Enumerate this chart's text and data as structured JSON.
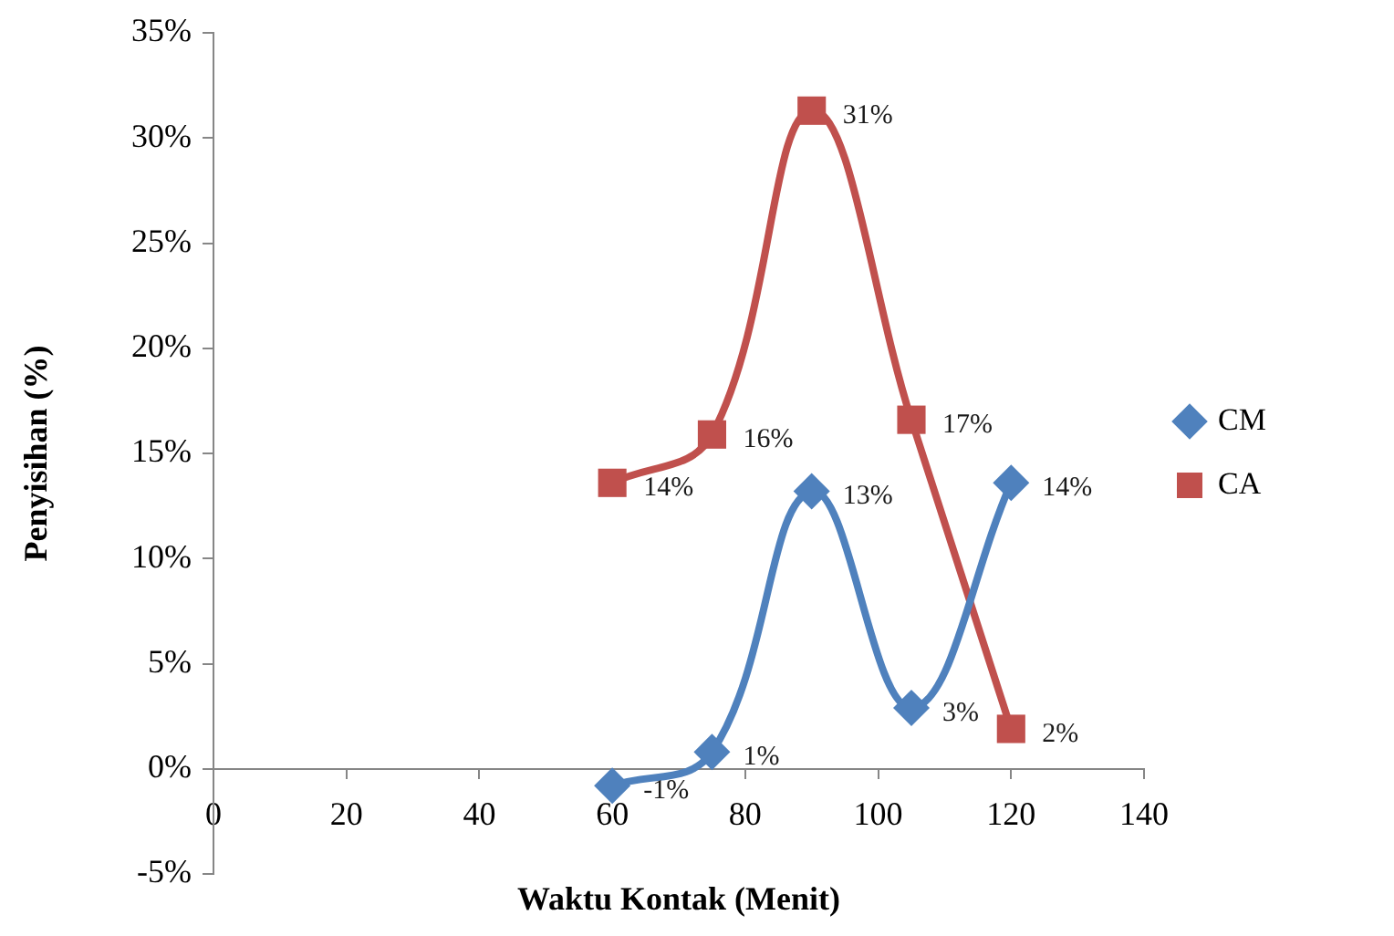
{
  "chart_data": {
    "type": "line",
    "xlabel": "Waktu Kontak (Menit)",
    "ylabel": "Penyisihan (%)",
    "x": [
      60,
      75,
      90,
      105,
      120
    ],
    "series": [
      {
        "name": "CM",
        "color": "#4f81bd",
        "marker": "diamond",
        "values": [
          -0.8,
          0.8,
          13.2,
          2.9,
          13.6
        ],
        "value_labels": [
          "-1%",
          "1%",
          "13%",
          "3%",
          "14%"
        ]
      },
      {
        "name": "CA",
        "color": "#c0504d",
        "marker": "square",
        "values": [
          13.6,
          15.9,
          31.3,
          16.6,
          1.9
        ],
        "value_labels": [
          "14%",
          "16%",
          "31%",
          "17%",
          "2%"
        ]
      }
    ],
    "xlim": [
      0,
      140
    ],
    "xticks": [
      0,
      20,
      40,
      60,
      80,
      100,
      120,
      140
    ],
    "ylim": [
      -5,
      35
    ],
    "yticks": [
      {
        "value": -5,
        "label": "-5%"
      },
      {
        "value": 0,
        "label": "0%"
      },
      {
        "value": 5,
        "label": "5%"
      },
      {
        "value": 10,
        "label": "10%"
      },
      {
        "value": 15,
        "label": "15%"
      },
      {
        "value": 20,
        "label": "20%"
      },
      {
        "value": 25,
        "label": "25%"
      },
      {
        "value": 30,
        "label": "30%"
      },
      {
        "value": 35,
        "label": "35%"
      }
    ],
    "grid": false,
    "legend": "right",
    "line_style": "solid"
  }
}
